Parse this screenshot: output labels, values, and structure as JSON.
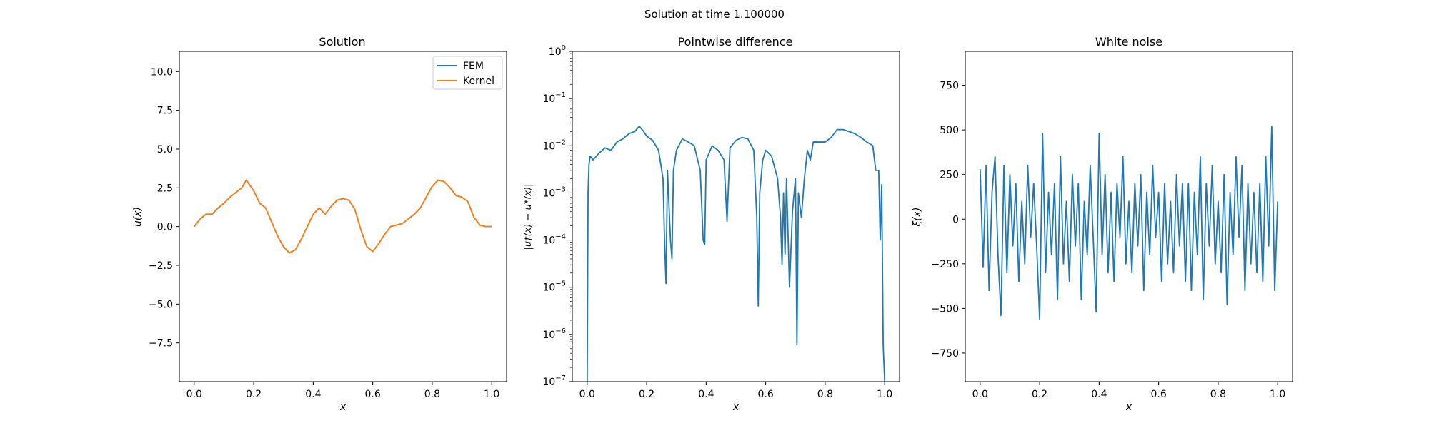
{
  "suptitle": "Solution at time 1.100000",
  "colors": {
    "fem": "#1f77b4",
    "kernel": "#ff7f0e",
    "noise": "#1f77b4",
    "diff": "#1f77b4"
  },
  "chart_data": [
    {
      "type": "line",
      "title": "Solution",
      "xlabel": "x",
      "ylabel": "u(x)",
      "xlim": [
        -0.05,
        1.05
      ],
      "ylim": [
        -10,
        11.3
      ],
      "xticks": [
        0.0,
        0.2,
        0.4,
        0.6,
        0.8,
        1.0
      ],
      "xtick_labels": [
        "0.0",
        "0.2",
        "0.4",
        "0.6",
        "0.8",
        "1.0"
      ],
      "yticks": [
        -7.5,
        -5.0,
        -2.5,
        0.0,
        2.5,
        5.0,
        7.5,
        10.0
      ],
      "ytick_labels": [
        "−7.5",
        "−5.0",
        "−2.5",
        "0.0",
        "2.5",
        "5.0",
        "7.5",
        "10.0"
      ],
      "legend": "top-right",
      "x": [
        0.0,
        0.02,
        0.04,
        0.06,
        0.08,
        0.1,
        0.12,
        0.14,
        0.16,
        0.175,
        0.2,
        0.22,
        0.24,
        0.26,
        0.28,
        0.3,
        0.32,
        0.34,
        0.36,
        0.38,
        0.4,
        0.42,
        0.44,
        0.46,
        0.48,
        0.5,
        0.52,
        0.54,
        0.56,
        0.58,
        0.6,
        0.62,
        0.64,
        0.66,
        0.68,
        0.7,
        0.72,
        0.74,
        0.76,
        0.78,
        0.8,
        0.82,
        0.84,
        0.86,
        0.88,
        0.9,
        0.92,
        0.94,
        0.96,
        0.98,
        1.0
      ],
      "series": [
        {
          "name": "FEM",
          "values": [
            0.0,
            0.5,
            0.8,
            0.8,
            1.2,
            1.5,
            1.9,
            2.2,
            2.5,
            3.0,
            2.3,
            1.5,
            1.2,
            0.3,
            -0.6,
            -1.3,
            -1.7,
            -1.5,
            -0.8,
            0.0,
            0.8,
            1.2,
            0.8,
            1.3,
            1.7,
            1.8,
            1.7,
            1.1,
            -0.2,
            -1.3,
            -1.6,
            -1.1,
            -0.5,
            0.0,
            0.1,
            0.2,
            0.5,
            0.8,
            1.2,
            1.9,
            2.6,
            3.0,
            2.9,
            2.5,
            2.0,
            1.9,
            1.6,
            0.6,
            0.1,
            0.0,
            0.0
          ]
        },
        {
          "name": "Kernel",
          "values": [
            0.0,
            0.5,
            0.8,
            0.8,
            1.2,
            1.5,
            1.9,
            2.2,
            2.5,
            3.0,
            2.3,
            1.5,
            1.2,
            0.3,
            -0.6,
            -1.3,
            -1.7,
            -1.5,
            -0.8,
            0.0,
            0.8,
            1.2,
            0.8,
            1.3,
            1.7,
            1.8,
            1.7,
            1.1,
            -0.2,
            -1.3,
            -1.6,
            -1.1,
            -0.5,
            0.0,
            0.1,
            0.2,
            0.5,
            0.8,
            1.2,
            1.9,
            2.6,
            3.0,
            2.9,
            2.5,
            2.0,
            1.9,
            1.6,
            0.6,
            0.1,
            0.0,
            0.0
          ]
        }
      ]
    },
    {
      "type": "line",
      "title": "Pointwise difference",
      "xlabel": "x",
      "ylabel": "|u†(x) − u*(x)|",
      "yscale": "log",
      "xlim": [
        -0.05,
        1.05
      ],
      "ylim": [
        1e-07,
        1
      ],
      "xticks": [
        0.0,
        0.2,
        0.4,
        0.6,
        0.8,
        1.0
      ],
      "xtick_labels": [
        "0.0",
        "0.2",
        "0.4",
        "0.6",
        "0.8",
        "1.0"
      ],
      "yticks": [
        1e-07,
        1e-06,
        1e-05,
        0.0001,
        0.001,
        0.01,
        0.1,
        1
      ],
      "ytick_labels": [
        [
          "10",
          "−7"
        ],
        [
          "10",
          "−6"
        ],
        [
          "10",
          "−5"
        ],
        [
          "10",
          "−4"
        ],
        [
          "10",
          "−3"
        ],
        [
          "10",
          "−2"
        ],
        [
          "10",
          "−1"
        ],
        [
          "10",
          "0"
        ]
      ],
      "x": [
        0.0,
        0.003,
        0.006,
        0.01,
        0.02,
        0.04,
        0.06,
        0.08,
        0.1,
        0.12,
        0.14,
        0.16,
        0.175,
        0.19,
        0.2,
        0.22,
        0.24,
        0.255,
        0.26,
        0.265,
        0.27,
        0.28,
        0.285,
        0.29,
        0.3,
        0.32,
        0.34,
        0.36,
        0.38,
        0.39,
        0.395,
        0.4,
        0.42,
        0.44,
        0.46,
        0.47,
        0.48,
        0.5,
        0.52,
        0.54,
        0.56,
        0.57,
        0.575,
        0.58,
        0.59,
        0.6,
        0.62,
        0.64,
        0.65,
        0.655,
        0.66,
        0.665,
        0.67,
        0.68,
        0.69,
        0.7,
        0.705,
        0.71,
        0.72,
        0.73,
        0.74,
        0.75,
        0.76,
        0.78,
        0.8,
        0.82,
        0.84,
        0.86,
        0.88,
        0.9,
        0.92,
        0.94,
        0.96,
        0.97,
        0.98,
        0.985,
        0.99,
        0.995,
        1.0
      ],
      "values": [
        1e-07,
        0.001,
        0.004,
        0.006,
        0.005,
        0.007,
        0.009,
        0.008,
        0.012,
        0.014,
        0.018,
        0.02,
        0.026,
        0.02,
        0.016,
        0.013,
        0.008,
        0.002,
        0.0001,
        1.2e-05,
        0.003,
        0.0001,
        4e-05,
        0.003,
        0.008,
        0.014,
        0.012,
        0.01,
        0.003,
        0.0001,
        8e-05,
        0.005,
        0.01,
        0.008,
        0.005,
        0.00025,
        0.009,
        0.013,
        0.015,
        0.014,
        0.008,
        0.0003,
        4e-06,
        0.001,
        0.005,
        0.008,
        0.006,
        0.002,
        0.0003,
        3e-05,
        0.001,
        5e-05,
        0.002,
        1e-05,
        0.0004,
        0.002,
        6e-07,
        0.001,
        0.0003,
        0.002,
        0.008,
        0.005,
        0.012,
        0.012,
        0.012,
        0.015,
        0.022,
        0.022,
        0.02,
        0.018,
        0.015,
        0.012,
        0.01,
        0.003,
        0.003,
        0.0001,
        0.0015,
        6e-07,
        1e-07
      ]
    },
    {
      "type": "line",
      "title": "White noise",
      "xlabel": "x",
      "ylabel": "ξ(x)",
      "xlim": [
        -0.05,
        1.05
      ],
      "ylim": [
        -910,
        940
      ],
      "xticks": [
        0.0,
        0.2,
        0.4,
        0.6,
        0.8,
        1.0
      ],
      "xtick_labels": [
        "0.0",
        "0.2",
        "0.4",
        "0.6",
        "0.8",
        "1.0"
      ],
      "yticks": [
        -750,
        -500,
        -250,
        0,
        250,
        500,
        750
      ],
      "ytick_labels": [
        "−750",
        "−500",
        "−250",
        "0",
        "250",
        "500",
        "750"
      ],
      "x": [
        0.0,
        0.01,
        0.02,
        0.03,
        0.04,
        0.05,
        0.06,
        0.07,
        0.08,
        0.09,
        0.1,
        0.11,
        0.12,
        0.13,
        0.14,
        0.15,
        0.16,
        0.17,
        0.18,
        0.19,
        0.2,
        0.21,
        0.22,
        0.23,
        0.24,
        0.25,
        0.26,
        0.27,
        0.28,
        0.29,
        0.3,
        0.31,
        0.32,
        0.33,
        0.34,
        0.35,
        0.36,
        0.37,
        0.38,
        0.39,
        0.4,
        0.41,
        0.42,
        0.43,
        0.44,
        0.45,
        0.46,
        0.47,
        0.48,
        0.49,
        0.5,
        0.51,
        0.52,
        0.53,
        0.54,
        0.55,
        0.56,
        0.57,
        0.58,
        0.59,
        0.6,
        0.61,
        0.62,
        0.63,
        0.64,
        0.65,
        0.66,
        0.67,
        0.68,
        0.69,
        0.7,
        0.71,
        0.72,
        0.73,
        0.74,
        0.75,
        0.76,
        0.77,
        0.78,
        0.79,
        0.8,
        0.81,
        0.82,
        0.83,
        0.84,
        0.85,
        0.86,
        0.87,
        0.88,
        0.89,
        0.9,
        0.91,
        0.92,
        0.93,
        0.94,
        0.95,
        0.96,
        0.97,
        0.98,
        0.99,
        1.0
      ],
      "values": [
        280,
        -270,
        300,
        -400,
        150,
        350,
        -200,
        -540,
        300,
        -300,
        250,
        -150,
        200,
        -350,
        100,
        -250,
        300,
        -100,
        200,
        -150,
        -560,
        480,
        -300,
        150,
        -200,
        200,
        -450,
        350,
        -250,
        100,
        -350,
        250,
        -150,
        200,
        -450,
        100,
        -200,
        300,
        -100,
        -520,
        480,
        -200,
        250,
        -300,
        150,
        -350,
        200,
        -100,
        350,
        -250,
        100,
        -300,
        200,
        -150,
        250,
        -400,
        150,
        -200,
        300,
        -100,
        150,
        -350,
        200,
        -250,
        100,
        -300,
        250,
        -150,
        200,
        -350,
        200,
        -400,
        150,
        -200,
        350,
        -450,
        200,
        -150,
        300,
        -250,
        100,
        -300,
        250,
        -480,
        150,
        -200,
        350,
        -100,
        300,
        -400,
        200,
        -250,
        150,
        -300,
        200,
        -350,
        350,
        -150,
        520,
        -400,
        100
      ]
    }
  ]
}
